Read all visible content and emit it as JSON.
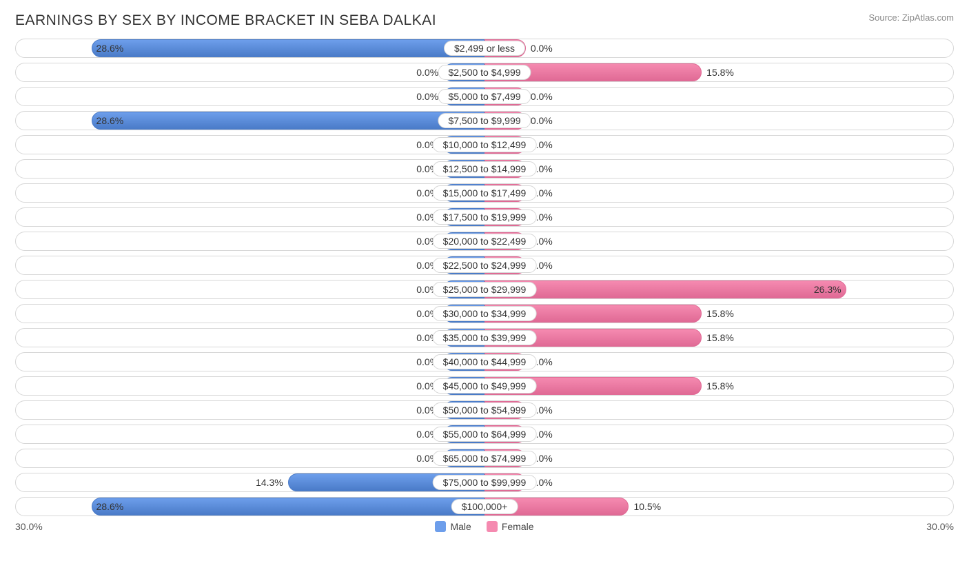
{
  "title": "EARNINGS BY SEX BY INCOME BRACKET IN SEBA DALKAI",
  "source": "Source: ZipAtlas.com",
  "type": "diverging-bar",
  "max_percent": 30.0,
  "min_bar_percent": 3.0,
  "axis_left_label": "30.0%",
  "axis_right_label": "30.0%",
  "colors": {
    "male_fill": "#6d9eeb",
    "male_stroke": "#4a7bc8",
    "female_fill": "#f58ab0",
    "female_stroke": "#e06a95",
    "row_border": "#d7d7d7",
    "text": "#333333",
    "background": "#ffffff"
  },
  "legend": [
    {
      "label": "Male",
      "swatch": "#6d9eeb"
    },
    {
      "label": "Female",
      "swatch": "#f58ab0"
    }
  ],
  "rows": [
    {
      "category": "$2,499 or less",
      "male": 28.6,
      "female": 0.0
    },
    {
      "category": "$2,500 to $4,999",
      "male": 0.0,
      "female": 15.8
    },
    {
      "category": "$5,000 to $7,499",
      "male": 0.0,
      "female": 0.0
    },
    {
      "category": "$7,500 to $9,999",
      "male": 28.6,
      "female": 0.0
    },
    {
      "category": "$10,000 to $12,499",
      "male": 0.0,
      "female": 0.0
    },
    {
      "category": "$12,500 to $14,999",
      "male": 0.0,
      "female": 0.0
    },
    {
      "category": "$15,000 to $17,499",
      "male": 0.0,
      "female": 0.0
    },
    {
      "category": "$17,500 to $19,999",
      "male": 0.0,
      "female": 0.0
    },
    {
      "category": "$20,000 to $22,499",
      "male": 0.0,
      "female": 0.0
    },
    {
      "category": "$22,500 to $24,999",
      "male": 0.0,
      "female": 0.0
    },
    {
      "category": "$25,000 to $29,999",
      "male": 0.0,
      "female": 26.3
    },
    {
      "category": "$30,000 to $34,999",
      "male": 0.0,
      "female": 15.8
    },
    {
      "category": "$35,000 to $39,999",
      "male": 0.0,
      "female": 15.8
    },
    {
      "category": "$40,000 to $44,999",
      "male": 0.0,
      "female": 0.0
    },
    {
      "category": "$45,000 to $49,999",
      "male": 0.0,
      "female": 15.8
    },
    {
      "category": "$50,000 to $54,999",
      "male": 0.0,
      "female": 0.0
    },
    {
      "category": "$55,000 to $64,999",
      "male": 0.0,
      "female": 0.0
    },
    {
      "category": "$65,000 to $74,999",
      "male": 0.0,
      "female": 0.0
    },
    {
      "category": "$75,000 to $99,999",
      "male": 14.3,
      "female": 0.0
    },
    {
      "category": "$100,000+",
      "male": 28.6,
      "female": 10.5
    }
  ]
}
